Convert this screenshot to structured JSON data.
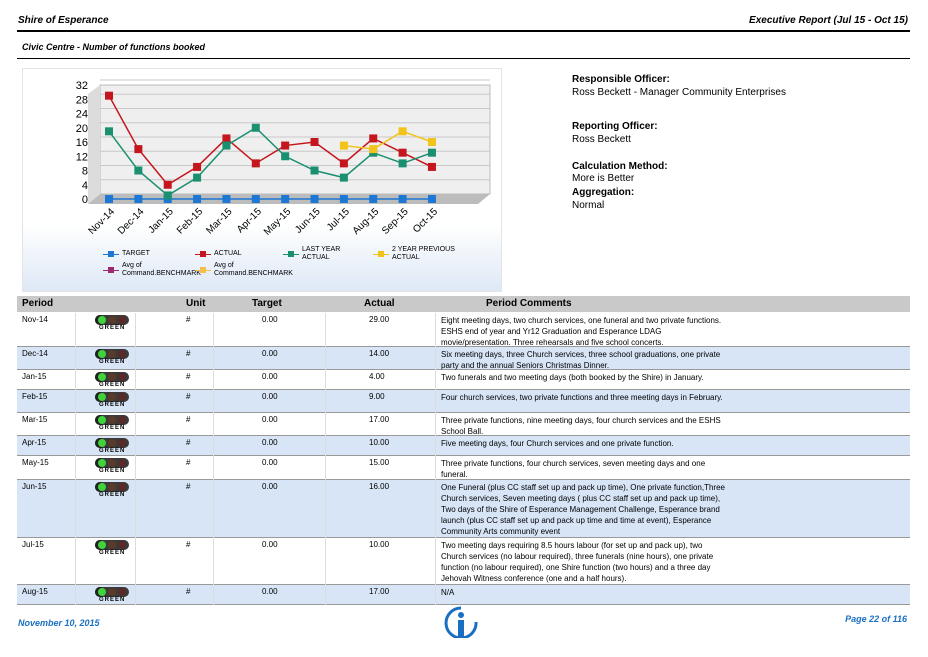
{
  "header": {
    "title": "Shire of Esperance",
    "report": "Executive Report (Jul 15 - Oct 15)",
    "subtitle": "Civic Centre - Number of functions booked"
  },
  "chart_data": {
    "type": "line",
    "categories": [
      "Nov-14",
      "Dec-14",
      "Jan-15",
      "Feb-15",
      "Mar-15",
      "Apr-15",
      "May-15",
      "Jun-15",
      "Jul-15",
      "Aug-15",
      "Sep-15",
      "Oct-15"
    ],
    "ylim": [
      0,
      32
    ],
    "yticks": [
      0,
      4,
      8,
      12,
      16,
      20,
      24,
      28,
      32
    ],
    "grid": true,
    "series": [
      {
        "name": "TARGET",
        "color": "#1f77d4",
        "values": [
          0,
          0,
          0,
          0,
          0,
          0,
          0,
          0,
          0,
          0,
          0,
          0
        ]
      },
      {
        "name": "ACTUAL",
        "color": "#c4161c",
        "values": [
          29,
          14,
          4,
          9,
          17,
          10,
          15,
          16,
          10,
          17,
          13,
          9
        ]
      },
      {
        "name": "LAST YEAR ACTUAL",
        "color": "#1a9070",
        "values": [
          19,
          8,
          1,
          6,
          15,
          20,
          12,
          8,
          6,
          13,
          10,
          13
        ]
      },
      {
        "name": "2 YEAR PREVIOUS ACTUAL",
        "color": "#f2c318",
        "values": [
          null,
          null,
          null,
          null,
          null,
          null,
          null,
          null,
          15,
          14,
          19,
          16
        ]
      },
      {
        "name": "Avg of Command.BENCHMARK",
        "color": "#9c2a6e",
        "values": [
          null,
          null,
          null,
          null,
          null,
          null,
          null,
          null,
          null,
          null,
          null,
          null
        ]
      },
      {
        "name": "Avg of Command.BENCHMARK",
        "color": "#f5c04a",
        "values": [
          null,
          null,
          null,
          null,
          null,
          null,
          null,
          null,
          null,
          null,
          null,
          null
        ]
      }
    ]
  },
  "info": [
    {
      "label": "Responsible Officer:",
      "value": "Ross Beckett - Manager Community Enterprises"
    },
    {
      "label": "Reporting Officer:",
      "value": "Ross Beckett"
    },
    {
      "label": "Calculation Method:",
      "value": "More is Better"
    },
    {
      "label": "Aggregation:",
      "value": "Normal"
    }
  ],
  "table": {
    "headers": [
      "Period",
      "Unit",
      "Target",
      "Actual",
      "Period Comments"
    ],
    "rows": [
      {
        "period": "Nov-14",
        "status": "GREEN",
        "unit": "#",
        "target": "0.00",
        "actual": "29.00",
        "comments": "Eight meeting days, two church services, one funeral and two private functions. ESHS end of year and Yr12 Graduation and Esperance LDAG movie/presentation. Three rehearsals and five school concerts."
      },
      {
        "period": "Dec-14",
        "status": "GREEN",
        "unit": "#",
        "target": "0.00",
        "actual": "14.00",
        "comments": "Six meeting days, three Church services, three school graduations, one private party and the annual Seniors Christmas Dinner."
      },
      {
        "period": "Jan-15",
        "status": "GREEN",
        "unit": "#",
        "target": "0.00",
        "actual": "4.00",
        "comments": "Two funerals and two meeting days (both booked by the Shire) in January."
      },
      {
        "period": "Feb-15",
        "status": "GREEN",
        "unit": "#",
        "target": "0.00",
        "actual": "9.00",
        "comments": "Four church services, two private functions and three meeting days in February."
      },
      {
        "period": "Mar-15",
        "status": "GREEN",
        "unit": "#",
        "target": "0.00",
        "actual": "17.00",
        "comments": "Three private functions, nine meeting days, four church services and the ESHS School Ball."
      },
      {
        "period": "Apr-15",
        "status": "GREEN",
        "unit": "#",
        "target": "0.00",
        "actual": "10.00",
        "comments": "Five meeting days, four Church services and one private function."
      },
      {
        "period": "May-15",
        "status": "GREEN",
        "unit": "#",
        "target": "0.00",
        "actual": "15.00",
        "comments": "Three private functions, four church services, seven meeting days and one funeral."
      },
      {
        "period": "Jun-15",
        "status": "GREEN",
        "unit": "#",
        "target": "0.00",
        "actual": "16.00",
        "comments": "One Funeral (plus CC staff set up and pack up time), One private function,Three Church services, Seven meeting days ( plus CC staff set up and pack up time), Two days of the Shire of Esperance Management Challenge, Esperance brand launch (plus CC staff set up and pack up time and time at event), Esperance Community Arts community event"
      },
      {
        "period": "Jul-15",
        "status": "GREEN",
        "unit": "#",
        "target": "0.00",
        "actual": "10.00",
        "comments": "Two meeting days requiring 8.5 hours labour (for set up and pack up), two Church services (no labour required), three funerals (nine hours), one private function (no labour required), one Shire function (two hours) and a three day Jehovah Witness conference (one and a half hours)."
      },
      {
        "period": "Aug-15",
        "status": "GREEN",
        "unit": "#",
        "target": "0.00",
        "actual": "17.00",
        "comments": "N/A"
      }
    ]
  },
  "footer": {
    "date": "November 10, 2015",
    "page": "Page 22 of 116"
  }
}
